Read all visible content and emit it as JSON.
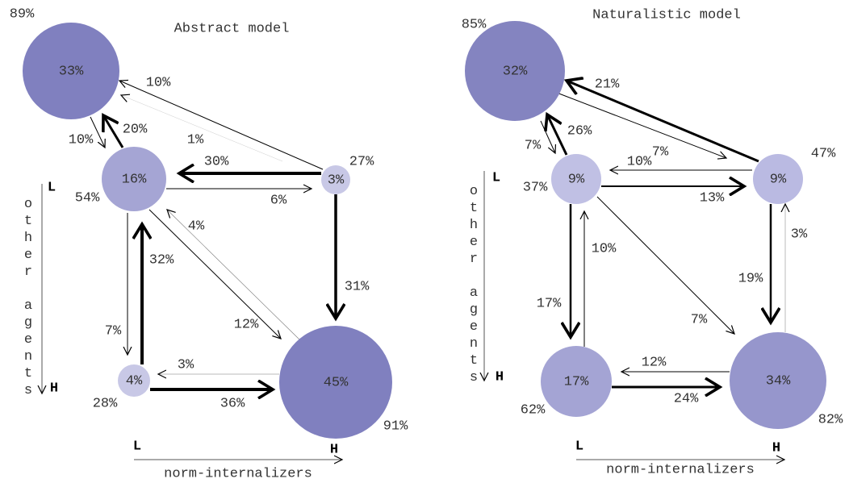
{
  "panels": [
    {
      "title": "Abstract model",
      "nodes": [
        {
          "label": "33%",
          "outer": "89%"
        },
        {
          "label": "16%",
          "outer": "54%"
        },
        {
          "label": "3%",
          "outer": "27%"
        },
        {
          "label": "4%",
          "outer": "28%"
        },
        {
          "label": "45%",
          "outer": "91%"
        }
      ],
      "edges": [
        "10%",
        "1%",
        "10%",
        "20%",
        "30%",
        "6%",
        "31%",
        "4%",
        "12%",
        "7%",
        "32%",
        "3%",
        "36%"
      ],
      "x_axis": {
        "low": "L",
        "high": "H",
        "label": "norm-internalizers"
      },
      "y_axis": {
        "low": "L",
        "high": "H",
        "label": "other agents"
      }
    },
    {
      "title": "Naturalistic model",
      "nodes": [
        {
          "label": "32%",
          "outer": "85%"
        },
        {
          "label": "9%",
          "outer": "37%"
        },
        {
          "label": "9%",
          "outer": "47%"
        },
        {
          "label": "17%",
          "outer": "62%"
        },
        {
          "label": "34%",
          "outer": "82%"
        }
      ],
      "edges": [
        "21%",
        "7%",
        "7%",
        "26%",
        "10%",
        "13%",
        "19%",
        "3%",
        "7%",
        "17%",
        "10%",
        "12%",
        "24%"
      ],
      "x_axis": {
        "low": "L",
        "high": "H",
        "label": "norm-internalizers"
      },
      "y_axis": {
        "low": "L",
        "high": "H",
        "label": "other agents"
      }
    }
  ]
}
